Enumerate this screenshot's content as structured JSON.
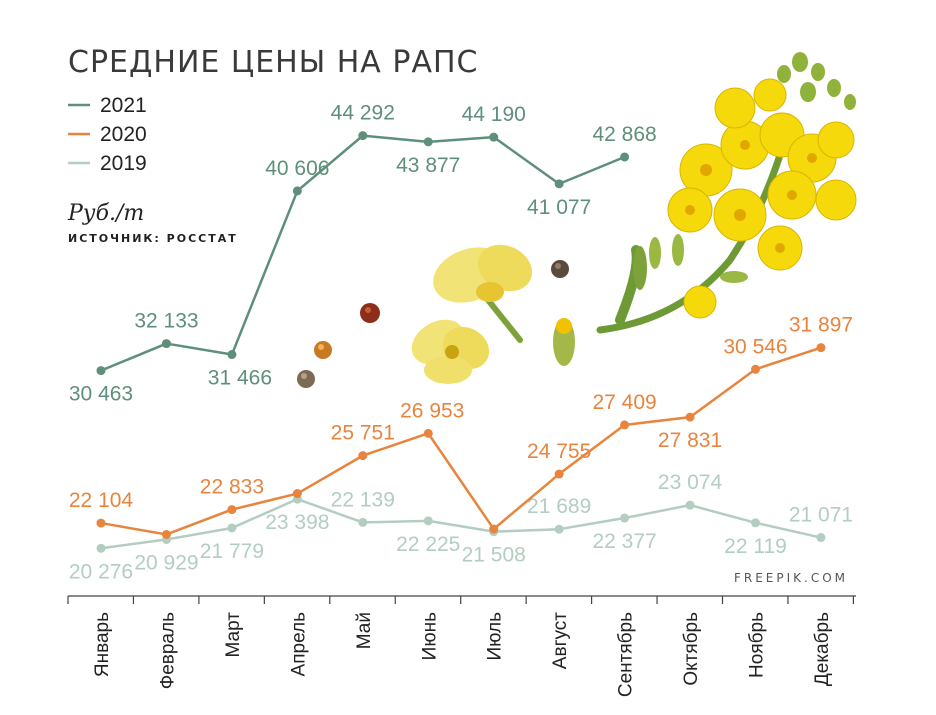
{
  "chart_data": {
    "type": "line",
    "title": "СРЕДНИЕ ЦЕНЫ НА РАПС",
    "unit": "Руб./т",
    "source": "ИСТОЧНИК: РОССТАТ",
    "credit": "FREEPIK.COM",
    "categories": [
      "Январь",
      "Февраль",
      "Март",
      "Апрель",
      "Май",
      "Июнь",
      "Июль",
      "Август",
      "Сентябрь",
      "Октябрь",
      "Ноябрь",
      "Декабрь"
    ],
    "series": [
      {
        "name": "2021",
        "color": "#5e8f7a",
        "values": [
          30463,
          32133,
          31466,
          40606,
          44292,
          43877,
          44190,
          41077,
          42868,
          null,
          null,
          null
        ],
        "labels": [
          "30 463",
          "32 133",
          "31 466",
          "40 606",
          "44 292",
          "43 877",
          "44 190",
          "41 077",
          "42 868",
          "",
          "",
          ""
        ]
      },
      {
        "name": "2020",
        "color": "#e8843e",
        "values": [
          22104,
          21300,
          22833,
          23700,
          25751,
          26953,
          21700,
          24755,
          27409,
          27831,
          30546,
          31897
        ],
        "labels": [
          "22 104",
          "",
          "22 833",
          "",
          "25 751",
          "26 953",
          "",
          "24 755",
          "27 409",
          "27 831",
          "30 546",
          "31 897"
        ]
      },
      {
        "name": "2019",
        "color": "#b3cdc1",
        "values": [
          20276,
          20929,
          21779,
          23398,
          22139,
          22225,
          21508,
          21689,
          22377,
          23074,
          22119,
          21071
        ],
        "labels": [
          "20 276",
          "20 929",
          "21 779",
          "23 398",
          "22 139",
          "22 225",
          "21 508",
          "21 689",
          "22 377",
          "23 074",
          "22 119",
          "21 071"
        ]
      }
    ],
    "legend_position": "top-left",
    "grid": false
  }
}
